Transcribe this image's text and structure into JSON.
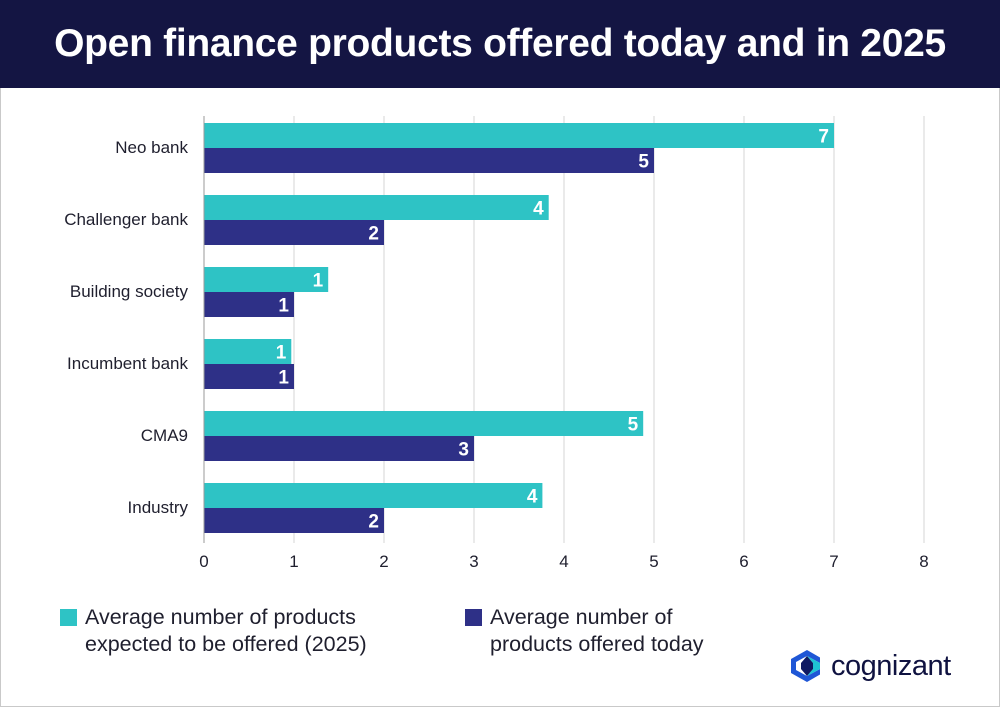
{
  "title": "Open finance products offered today and in 2025",
  "colors": {
    "header_bg": "#141543",
    "expected_2025": "#2ec3c5",
    "offered_today": "#2e3087",
    "grid": "#d4d4d4"
  },
  "chart_data": {
    "type": "bar",
    "orientation": "horizontal",
    "categories": [
      "Neo bank",
      "Challenger bank",
      "Building society",
      "Incumbent bank",
      "CMA9",
      "Industry"
    ],
    "series": [
      {
        "name": "Average number of products expected to be offered (2025)",
        "values": [
          7.0,
          3.83,
          1.38,
          0.97,
          4.88,
          3.76
        ],
        "labels": [
          "7",
          "4",
          "1",
          "1",
          "5",
          "4"
        ],
        "color": "#2ec3c5"
      },
      {
        "name": "Average number of products offered today",
        "values": [
          5.0,
          2.0,
          1.0,
          1.0,
          3.0,
          2.0
        ],
        "labels": [
          "5",
          "2",
          "1",
          "1",
          "3",
          "2"
        ],
        "color": "#2e3087"
      }
    ],
    "xlim": [
      0,
      8
    ],
    "xticks": [
      "0",
      "1",
      "2",
      "3",
      "4",
      "5",
      "6",
      "7",
      "8"
    ],
    "grid": true,
    "legend_position": "bottom"
  },
  "legend": {
    "expected_label": "Average number of products expected to be offered (2025)",
    "today_label": "Average number of products offered today"
  },
  "logo": {
    "text": "cognizant",
    "icon": "cognizant-logo-icon"
  }
}
